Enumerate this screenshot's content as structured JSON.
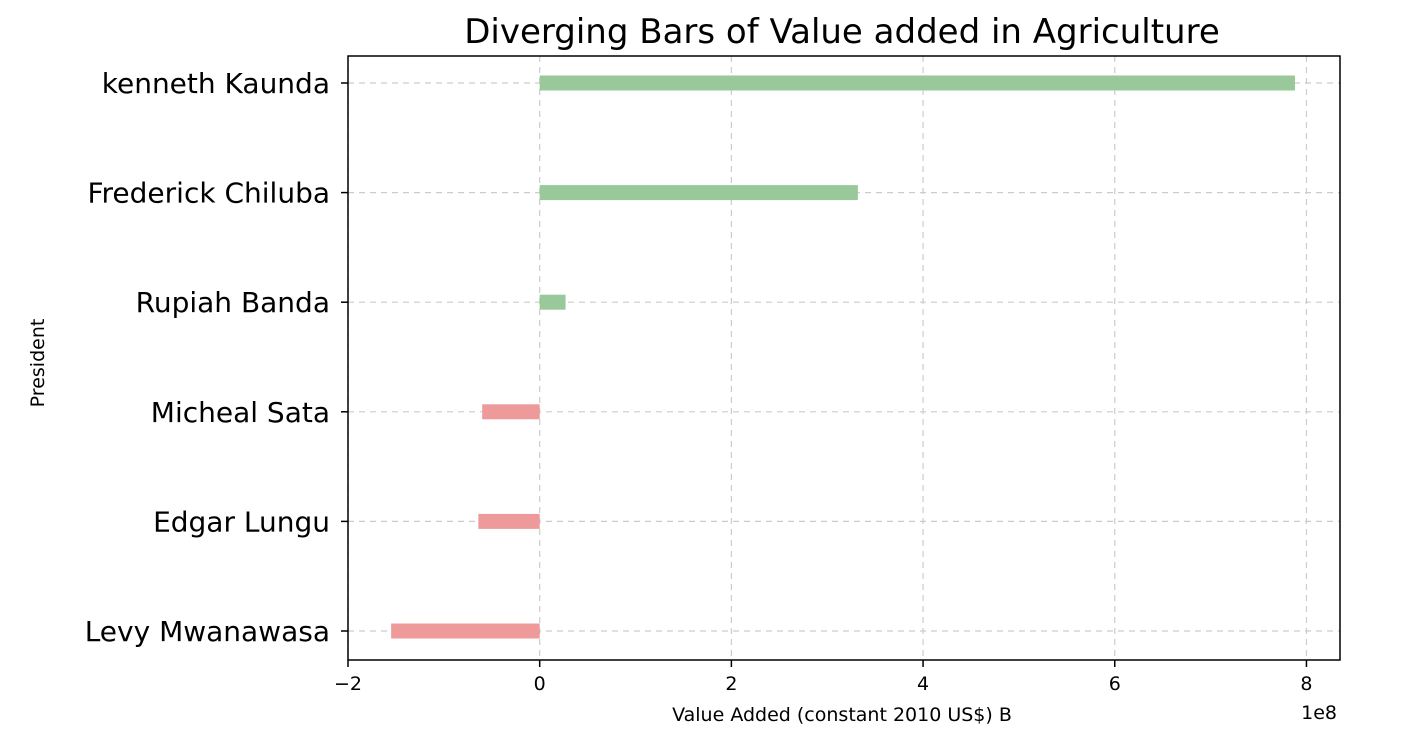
{
  "chart_data": {
    "type": "bar",
    "orientation": "horizontal",
    "title": "Diverging Bars of Value added in Agriculture",
    "xlabel": "Value Added (constant 2010 US$) B",
    "ylabel": "President",
    "x_scale_label": "1e8",
    "xlim": [
      -2,
      8.35
    ],
    "x_ticks": [
      -2,
      0,
      2,
      4,
      6,
      8
    ],
    "x_tick_labels": [
      "−2",
      "0",
      "2",
      "4",
      "6",
      "8"
    ],
    "grid": true,
    "categories": [
      "kenneth Kaunda",
      "Frederick Chiluba",
      "Rupiah Banda",
      "Micheal Sata",
      "Edgar Lungu",
      "Levy Mwanawasa"
    ],
    "values": [
      7.88,
      3.32,
      0.27,
      -0.6,
      -0.64,
      -1.55
    ],
    "colors": {
      "positive": "#99c99a",
      "negative": "#ef9a9a",
      "grid": "#cccccc",
      "axis": "#000000"
    }
  }
}
